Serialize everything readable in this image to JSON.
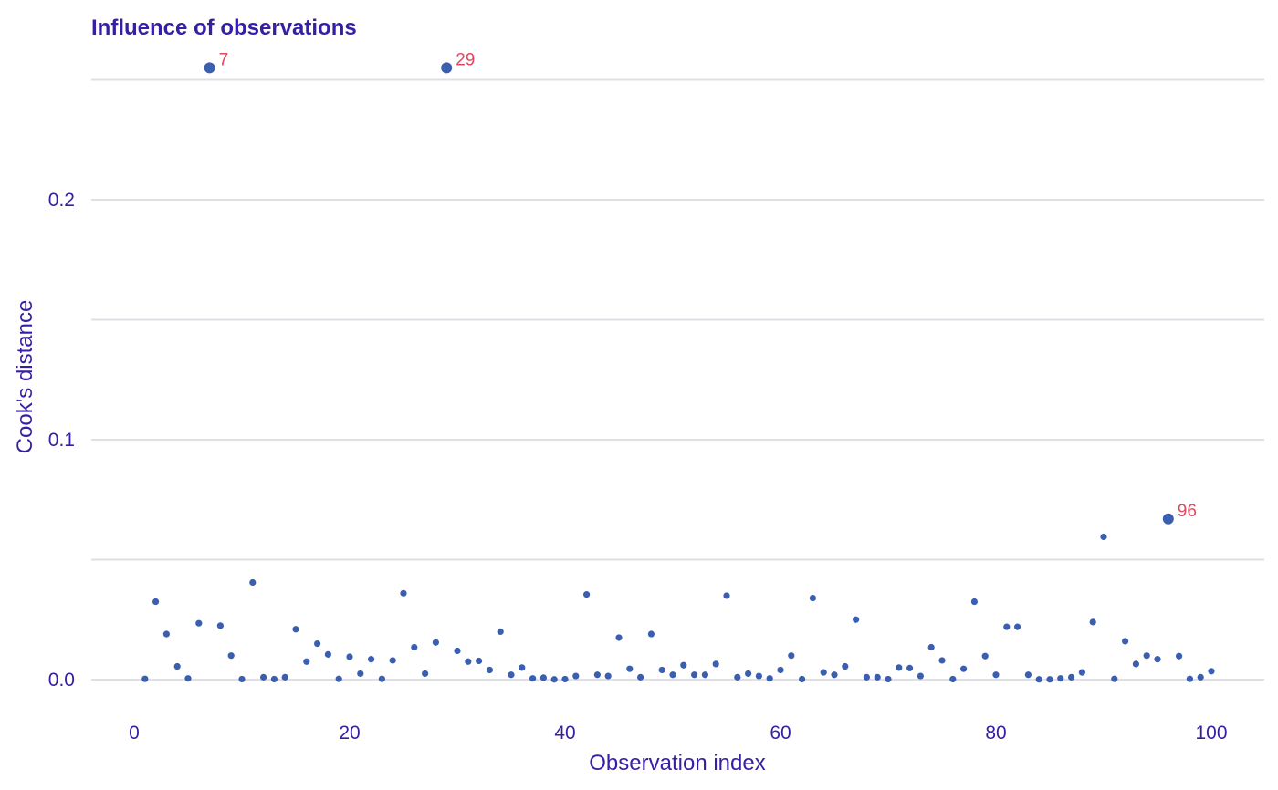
{
  "chart_data": {
    "type": "scatter",
    "title": "Influence of observations",
    "xlabel": "Observation index",
    "ylabel": "Cook's distance",
    "xlim": [
      0,
      100
    ],
    "ylim": [
      0,
      0.25
    ],
    "x_ticks": [
      0,
      20,
      40,
      60,
      80,
      100
    ],
    "x_tick_labels": [
      "0",
      "20",
      "40",
      "60",
      "80",
      "100"
    ],
    "y_ticks": [
      0,
      0.1,
      0.2
    ],
    "y_tick_labels": [
      "0.0",
      "0.1",
      "0.2"
    ],
    "y_minor_gridlines": [
      0.05,
      0.15,
      0.25
    ],
    "grid": "horizontal",
    "point_color": "#3b5fb0",
    "label_color": "#e2475f",
    "highlighted": [
      {
        "x": 7,
        "y": 0.255,
        "label": "7"
      },
      {
        "x": 29,
        "y": 0.255,
        "label": "29"
      },
      {
        "x": 96,
        "y": 0.067,
        "label": "96"
      }
    ],
    "x": [
      1,
      2,
      3,
      4,
      5,
      6,
      7,
      8,
      9,
      10,
      11,
      12,
      13,
      14,
      15,
      16,
      17,
      18,
      19,
      20,
      21,
      22,
      23,
      24,
      25,
      26,
      27,
      28,
      29,
      30,
      31,
      32,
      33,
      34,
      35,
      36,
      37,
      38,
      39,
      40,
      41,
      42,
      43,
      44,
      45,
      46,
      47,
      48,
      49,
      50,
      51,
      52,
      53,
      54,
      55,
      56,
      57,
      58,
      59,
      60,
      61,
      62,
      63,
      64,
      65,
      66,
      67,
      68,
      69,
      70,
      71,
      72,
      73,
      74,
      75,
      76,
      77,
      78,
      79,
      80,
      81,
      82,
      83,
      84,
      85,
      86,
      87,
      88,
      89,
      90,
      91,
      92,
      93,
      94,
      95,
      96,
      97,
      98,
      99,
      100
    ],
    "y": [
      0.0003,
      0.0325,
      0.019,
      0.0055,
      0.0005,
      0.0235,
      0.255,
      0.0225,
      0.01,
      0.0002,
      0.0405,
      0.001,
      0.0002,
      0.001,
      0.021,
      0.0075,
      0.015,
      0.0105,
      0.0003,
      0.0095,
      0.0025,
      0.0085,
      0.0003,
      0.008,
      0.036,
      0.0135,
      0.0025,
      0.0155,
      0.255,
      0.012,
      0.0075,
      0.0078,
      0.004,
      0.02,
      0.002,
      0.005,
      0.0005,
      0.0008,
      0.0001,
      0.0002,
      0.0015,
      0.0355,
      0.002,
      0.0015,
      0.0175,
      0.0045,
      0.001,
      0.019,
      0.004,
      0.002,
      0.006,
      0.002,
      0.002,
      0.0065,
      0.035,
      0.001,
      0.0025,
      0.0015,
      0.0005,
      0.004,
      0.01,
      0.0002,
      0.034,
      0.003,
      0.002,
      0.0055,
      0.025,
      0.001,
      0.001,
      0.0002,
      0.005,
      0.0048,
      0.0015,
      0.0135,
      0.008,
      0.0002,
      0.0045,
      0.0325,
      0.0098,
      0.002,
      0.022,
      0.022,
      0.002,
      0.0001,
      0.0001,
      0.0005,
      0.001,
      0.003,
      0.024,
      0.0595,
      0.0003,
      0.016,
      0.0065,
      0.01,
      0.0085,
      0.067,
      0.0098,
      0.0003,
      0.001,
      0.0035
    ]
  }
}
